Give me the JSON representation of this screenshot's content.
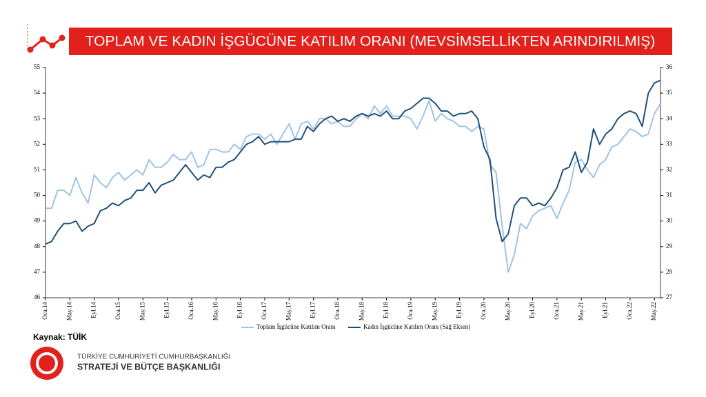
{
  "chart_data": {
    "type": "line",
    "title": "TOPLAM VE KADIN İŞGÜCÜNE KATILIM ORANI (MEVSİMSELLİKTEN ARINDIRILMIŞ)",
    "categories": [
      "Oca.14",
      null,
      null,
      null,
      "May.14",
      null,
      null,
      null,
      "Eyl.14",
      null,
      null,
      null,
      "Oca.15",
      null,
      null,
      null,
      "May.15",
      null,
      null,
      null,
      "Eyl.15",
      null,
      null,
      null,
      "Oca.16",
      null,
      null,
      null,
      "May.16",
      null,
      null,
      null,
      "Eyl.16",
      null,
      null,
      null,
      "Oca.17",
      null,
      null,
      null,
      "May.17",
      null,
      null,
      null,
      "Eyl.17",
      null,
      null,
      null,
      "Oca.18",
      null,
      null,
      null,
      "May.18",
      null,
      null,
      null,
      "Eyl.18",
      null,
      null,
      null,
      "Oca.19",
      null,
      null,
      null,
      "May.19",
      null,
      null,
      null,
      "Eyl.19",
      null,
      null,
      null,
      "Oca.20",
      null,
      null,
      null,
      "May.20",
      null,
      null,
      null,
      "Eyl.20",
      null,
      null,
      null,
      "Oca.21",
      null,
      null,
      null,
      "May.21",
      null,
      null,
      null,
      "Eyl.21",
      null,
      null,
      null,
      "Oca.22",
      null,
      null,
      null,
      "May.22",
      null
    ],
    "series": [
      {
        "name": "Toplam İşgücüne Katılım Oranı",
        "color": "#9dc3e6",
        "axis": "y",
        "values": [
          49.5,
          49.5,
          50.2,
          50.2,
          50.0,
          50.7,
          50.1,
          49.7,
          50.8,
          50.5,
          50.3,
          50.7,
          50.9,
          50.6,
          50.8,
          51.0,
          50.8,
          51.4,
          51.1,
          51.1,
          51.3,
          51.6,
          51.4,
          51.4,
          51.7,
          51.1,
          51.2,
          51.8,
          51.8,
          51.7,
          51.7,
          52.0,
          51.8,
          52.3,
          52.4,
          52.4,
          52.2,
          52.4,
          52.0,
          52.4,
          52.8,
          52.2,
          52.8,
          52.9,
          52.6,
          53.0,
          53.0,
          52.8,
          52.9,
          52.7,
          52.7,
          53.0,
          53.2,
          53.0,
          53.5,
          53.2,
          53.5,
          53.1,
          53.1,
          53.1,
          53.0,
          52.6,
          53.1,
          53.7,
          52.9,
          53.2,
          53.0,
          52.9,
          52.7,
          52.7,
          52.5,
          52.7,
          52.6,
          51.2,
          50.9,
          48.8,
          47.0,
          47.7,
          48.9,
          48.7,
          49.2,
          49.4,
          49.5,
          49.6,
          49.1,
          49.7,
          50.2,
          51.3,
          51.4,
          51.0,
          50.7,
          51.2,
          51.4,
          51.9,
          52.0,
          52.3,
          52.6,
          52.5,
          52.3,
          52.4,
          53.2,
          53.6
        ]
      },
      {
        "name": "Kadın İşgücüne Katılım Oranı (Sağ Eksen)",
        "color": "#1f4e79",
        "axis": "y2",
        "values": [
          29.1,
          29.2,
          29.6,
          29.9,
          29.9,
          30.0,
          29.6,
          29.8,
          29.9,
          30.4,
          30.5,
          30.7,
          30.6,
          30.8,
          30.9,
          31.2,
          31.2,
          31.5,
          31.1,
          31.4,
          31.5,
          31.6,
          31.9,
          32.2,
          31.9,
          31.6,
          31.8,
          31.7,
          32.1,
          32.1,
          32.3,
          32.4,
          32.7,
          33.0,
          33.1,
          33.3,
          33.0,
          33.1,
          33.1,
          33.1,
          33.1,
          33.2,
          33.2,
          33.7,
          33.5,
          33.8,
          34.0,
          34.1,
          33.9,
          34.0,
          33.9,
          34.1,
          34.2,
          34.1,
          34.2,
          34.1,
          34.3,
          34.0,
          34.0,
          34.3,
          34.4,
          34.6,
          34.8,
          34.8,
          34.6,
          34.3,
          34.3,
          34.1,
          34.2,
          34.2,
          34.3,
          34.0,
          32.9,
          32.4,
          30.1,
          29.2,
          29.5,
          30.6,
          30.9,
          30.9,
          30.6,
          30.7,
          30.6,
          30.9,
          31.3,
          32.0,
          32.1,
          32.7,
          31.9,
          32.3,
          33.6,
          33.0,
          33.4,
          33.6,
          34.0,
          34.2,
          34.3,
          34.2,
          33.7,
          35.0,
          35.4,
          35.5
        ]
      }
    ],
    "ylim": [
      46,
      55
    ],
    "yticks": [
      46,
      47,
      48,
      49,
      50,
      51,
      52,
      53,
      54,
      55
    ],
    "y2lim": [
      27,
      36
    ],
    "y2ticks": [
      27,
      28,
      29,
      30,
      31,
      32,
      33,
      34,
      35,
      36
    ],
    "grid": false,
    "legend": "bottom"
  },
  "footer": {
    "source": "Kaynak: TÜİK",
    "org_line1": "TÜRKİYE CUMHURİYETİ CUMHURBAŞKANLIĞI",
    "org_line2": "STRATEJİ VE BÜTÇE BAŞKANLIĞI"
  }
}
